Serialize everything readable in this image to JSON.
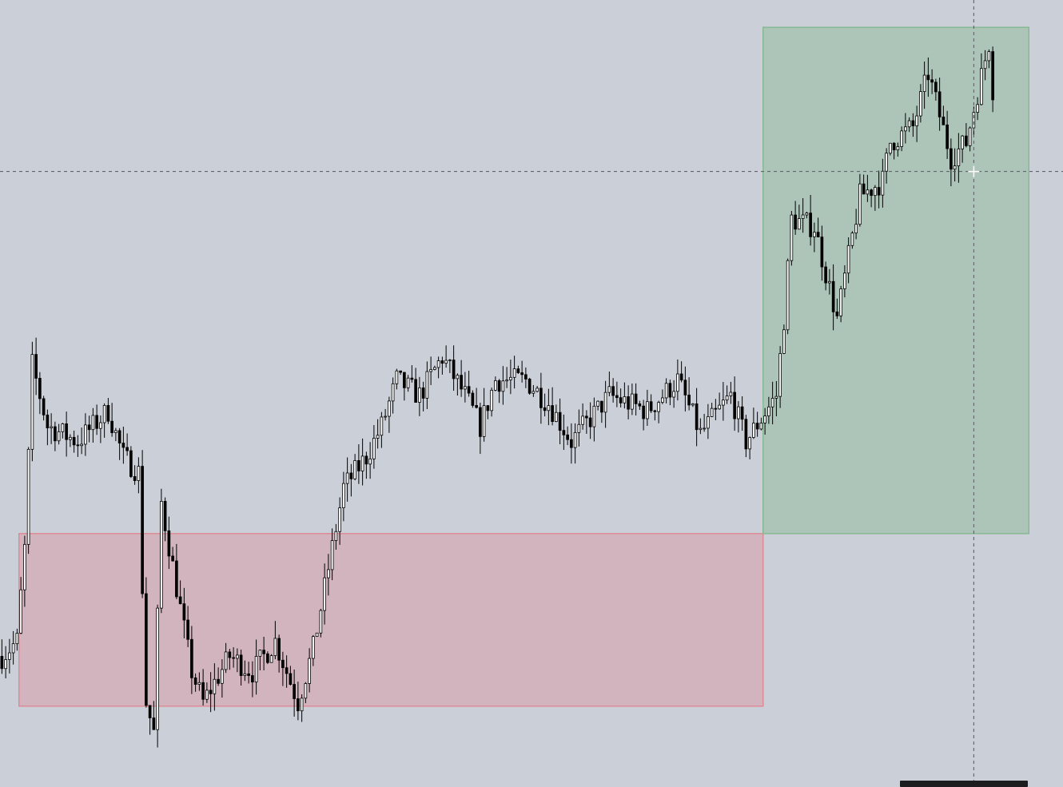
{
  "colors": {
    "background": "#cbcfd8",
    "candle_up_fill": "#ffffff",
    "candle_down_fill": "#000000",
    "candle_wick": "#000000",
    "range_zone_fill": "rgba(218,142,152,0.42)",
    "range_zone_stroke": "#df8a96",
    "breakout_zone_fill": "rgba(150,190,160,0.55)",
    "breakout_zone_stroke": "#86b992",
    "crosshair": "#55585f"
  },
  "chart_data": {
    "type": "candlestick",
    "grid": false,
    "axes_visible": false,
    "ylim": [
      0,
      100
    ],
    "x_count": 280,
    "candle_shape": {
      "bars": 262,
      "seed": 7,
      "anchors": [
        [
          0,
          16
        ],
        [
          4,
          18
        ],
        [
          6,
          30
        ],
        [
          8,
          54
        ],
        [
          12,
          46
        ],
        [
          20,
          44
        ],
        [
          28,
          48
        ],
        [
          32,
          42
        ],
        [
          36,
          40
        ],
        [
          38,
          10
        ],
        [
          40,
          6
        ],
        [
          42,
          36
        ],
        [
          46,
          25
        ],
        [
          50,
          14
        ],
        [
          53,
          10
        ],
        [
          60,
          16
        ],
        [
          66,
          14
        ],
        [
          72,
          18
        ],
        [
          78,
          10
        ],
        [
          82,
          17
        ],
        [
          90,
          38
        ],
        [
          96,
          42
        ],
        [
          100,
          46
        ],
        [
          104,
          52
        ],
        [
          110,
          50
        ],
        [
          116,
          55
        ],
        [
          122,
          50
        ],
        [
          126,
          46
        ],
        [
          130,
          52
        ],
        [
          138,
          52
        ],
        [
          144,
          49
        ],
        [
          150,
          44
        ],
        [
          160,
          50
        ],
        [
          170,
          48
        ],
        [
          178,
          52
        ],
        [
          184,
          45
        ],
        [
          192,
          50
        ],
        [
          196,
          44
        ],
        [
          204,
          50
        ],
        [
          206,
          60
        ],
        [
          208,
          73
        ],
        [
          214,
          72
        ],
        [
          220,
          60
        ],
        [
          226,
          76
        ],
        [
          232,
          78
        ],
        [
          234,
          83
        ],
        [
          240,
          85
        ],
        [
          244,
          92
        ],
        [
          250,
          81
        ],
        [
          254,
          83
        ],
        [
          260,
          96
        ],
        [
          262,
          84
        ]
      ]
    },
    "zones": [
      {
        "name": "range",
        "x_start": 5,
        "x_end": 201,
        "y_low": 9.5,
        "y_high": 32
      },
      {
        "name": "breakout",
        "x_start": 201,
        "x_end": 271,
        "y_low": 32,
        "y_high": 98
      }
    ],
    "crosshair": {
      "x": 256,
      "y": 79.2
    }
  }
}
